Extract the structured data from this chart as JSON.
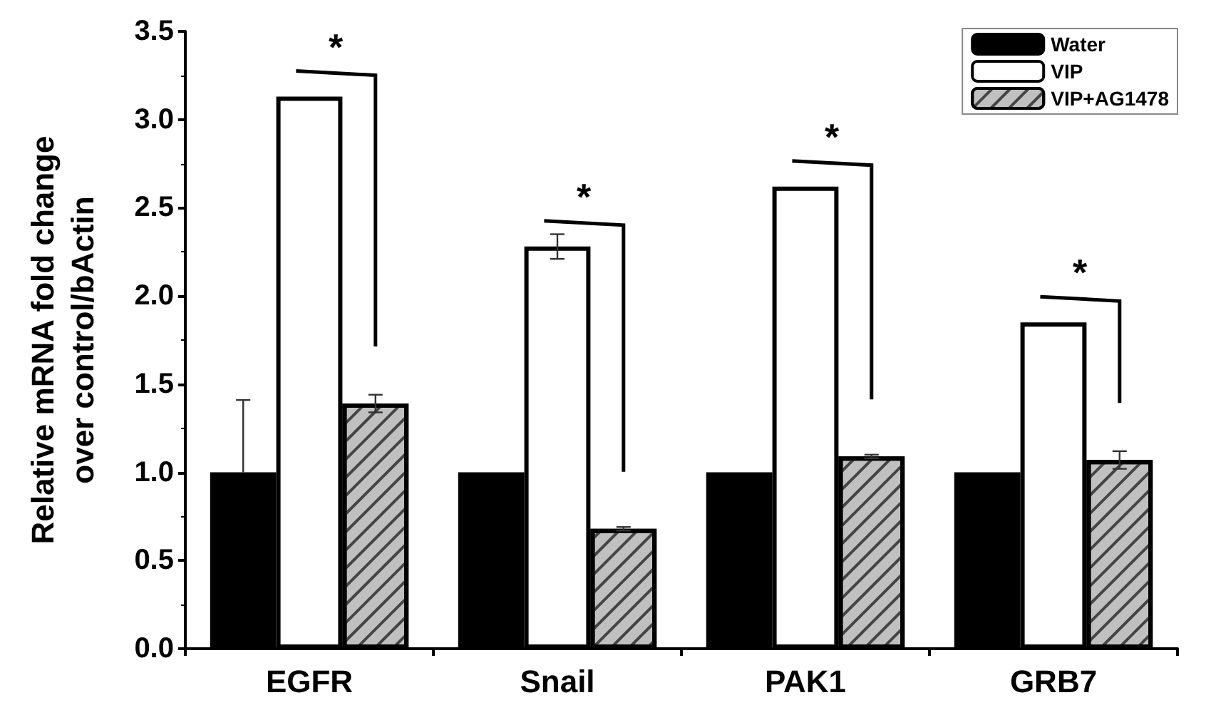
{
  "chart_data": {
    "type": "bar",
    "ylabel": "Relative mRNA fold change\nover control/bActin",
    "categories": [
      "EGFR",
      "Snail",
      "PAK1",
      "GRB7"
    ],
    "series": [
      {
        "name": "Water",
        "color": "#000000",
        "values": [
          1.0,
          1.0,
          1.0,
          1.0
        ],
        "errors": [
          [
            1.0,
            1.41
          ],
          null,
          null,
          null
        ]
      },
      {
        "name": "VIP",
        "color": "#ffffff",
        "values": [
          3.13,
          2.28,
          2.62,
          1.85
        ],
        "errors": [
          null,
          0.07,
          null,
          null
        ]
      },
      {
        "name": "VIP+AG1478",
        "color": "#c0c0c0",
        "values": [
          1.39,
          0.68,
          1.09,
          1.07
        ],
        "errors": [
          0.05,
          0.01,
          0.01,
          0.05
        ]
      }
    ],
    "ylim": [
      0,
      3.5
    ],
    "yticks": [
      {
        "value": 0,
        "label": "0.0"
      },
      {
        "value": 0.5,
        "label": "0.5"
      },
      {
        "value": 1,
        "label": "1.0"
      },
      {
        "value": 1.5,
        "label": "1.5"
      },
      {
        "value": 2,
        "label": "2.0"
      },
      {
        "value": 2.5,
        "label": "2.5"
      },
      {
        "value": 3,
        "label": "3.0"
      },
      {
        "value": 3.5,
        "label": "3.5"
      }
    ],
    "annotations": [
      "*",
      "*",
      "*",
      "*"
    ],
    "legend": "top right",
    "grid": false
  }
}
